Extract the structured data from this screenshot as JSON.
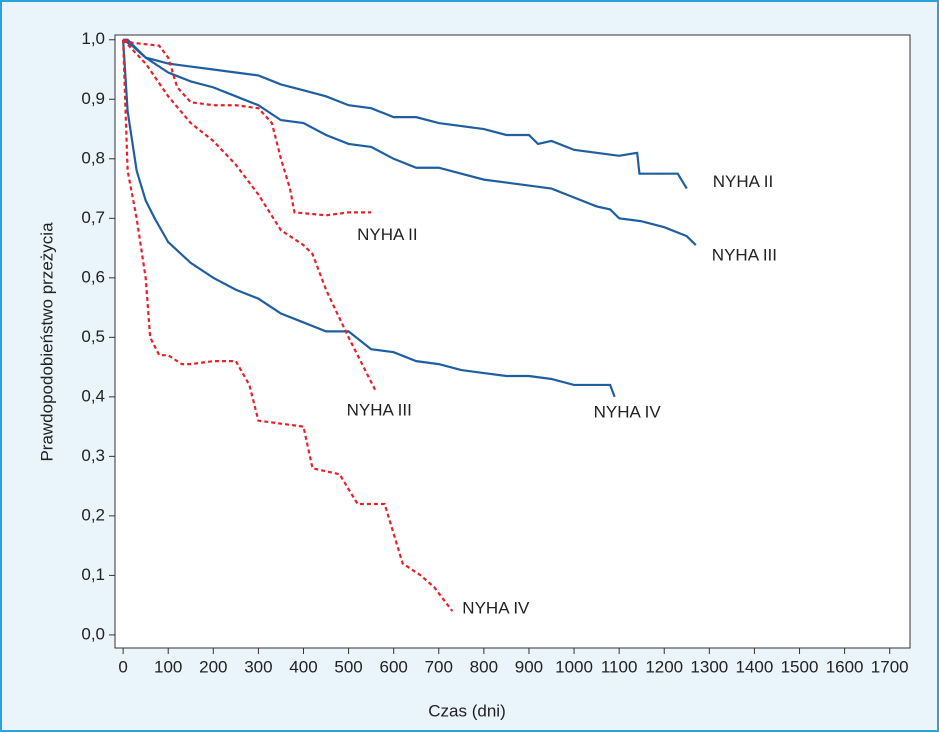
{
  "chart_data": {
    "type": "line",
    "x_label": "Czas (dni)",
    "y_label": "Prawdopodobieństwo przeżycia",
    "xlim": [
      -18,
      1745
    ],
    "ylim": [
      -0.022,
      1.008
    ],
    "xticks": [
      0,
      100,
      200,
      300,
      400,
      500,
      600,
      700,
      800,
      900,
      1000,
      1100,
      1200,
      1300,
      1400,
      1500,
      1600,
      1700
    ],
    "yticks": [
      {
        "value": 0,
        "label": "0,0"
      },
      {
        "value": 0.1,
        "label": "0,1"
      },
      {
        "value": 0.2,
        "label": "0,2"
      },
      {
        "value": 0.3,
        "label": "0,3"
      },
      {
        "value": 0.4,
        "label": "0,4"
      },
      {
        "value": 0.5,
        "label": "0,5"
      },
      {
        "value": 0.6,
        "label": "0,6"
      },
      {
        "value": 0.7,
        "label": "0,7"
      },
      {
        "value": 0.8,
        "label": "0,8"
      },
      {
        "value": 0.9,
        "label": "0,9"
      },
      {
        "value": 1,
        "label": "1,0"
      }
    ],
    "series": [
      {
        "name": "NYHA II",
        "color": "#1f5fa0",
        "dashed": false,
        "x": [
          0,
          10,
          50,
          100,
          150,
          200,
          250,
          300,
          350,
          400,
          450,
          500,
          550,
          600,
          650,
          700,
          800,
          850,
          900,
          920,
          950,
          1000,
          1050,
          1100,
          1140,
          1145,
          1200,
          1230,
          1250
        ],
        "values": [
          1.0,
          1.0,
          0.97,
          0.96,
          0.955,
          0.95,
          0.945,
          0.94,
          0.925,
          0.915,
          0.905,
          0.89,
          0.885,
          0.87,
          0.87,
          0.86,
          0.85,
          0.84,
          0.84,
          0.825,
          0.83,
          0.815,
          0.81,
          0.805,
          0.81,
          0.775,
          0.775,
          0.775,
          0.75
        ]
      },
      {
        "name": "NYHA III",
        "color": "#1f5fa0",
        "dashed": false,
        "x": [
          0,
          20,
          50,
          100,
          150,
          200,
          250,
          300,
          350,
          400,
          450,
          500,
          550,
          600,
          650,
          700,
          750,
          800,
          850,
          900,
          950,
          1000,
          1050,
          1080,
          1100,
          1150,
          1200,
          1250,
          1270
        ],
        "values": [
          1.0,
          0.99,
          0.97,
          0.945,
          0.93,
          0.92,
          0.905,
          0.89,
          0.865,
          0.86,
          0.84,
          0.825,
          0.82,
          0.8,
          0.785,
          0.785,
          0.775,
          0.765,
          0.76,
          0.755,
          0.75,
          0.735,
          0.72,
          0.715,
          0.7,
          0.695,
          0.685,
          0.67,
          0.655
        ]
      },
      {
        "name": "NYHA IV",
        "color": "#1f5fa0",
        "dashed": false,
        "x": [
          0,
          10,
          30,
          50,
          70,
          100,
          150,
          200,
          250,
          300,
          350,
          400,
          450,
          500,
          550,
          600,
          650,
          700,
          750,
          800,
          850,
          900,
          950,
          1000,
          1050,
          1080,
          1090
        ],
        "values": [
          1.0,
          0.88,
          0.78,
          0.73,
          0.7,
          0.66,
          0.625,
          0.6,
          0.58,
          0.565,
          0.54,
          0.525,
          0.51,
          0.51,
          0.48,
          0.475,
          0.46,
          0.455,
          0.445,
          0.44,
          0.435,
          0.435,
          0.43,
          0.42,
          0.42,
          0.42,
          0.4
        ]
      },
      {
        "name": "NYHA II",
        "color": "#e8202a",
        "dashed": true,
        "x": [
          0,
          20,
          80,
          100,
          120,
          150,
          200,
          250,
          300,
          330,
          350,
          370,
          380,
          450,
          500,
          550
        ],
        "values": [
          1.0,
          0.995,
          0.99,
          0.97,
          0.92,
          0.895,
          0.89,
          0.89,
          0.885,
          0.86,
          0.8,
          0.75,
          0.71,
          0.705,
          0.71,
          0.71
        ]
      },
      {
        "name": "NYHA III",
        "color": "#e8202a",
        "dashed": true,
        "x": [
          0,
          50,
          100,
          150,
          200,
          250,
          300,
          350,
          400,
          420,
          450,
          500,
          540,
          560
        ],
        "values": [
          1.0,
          0.96,
          0.905,
          0.86,
          0.83,
          0.79,
          0.74,
          0.68,
          0.655,
          0.64,
          0.58,
          0.5,
          0.44,
          0.41
        ]
      },
      {
        "name": "NYHA IV",
        "color": "#e8202a",
        "dashed": true,
        "x": [
          0,
          10,
          30,
          50,
          60,
          80,
          100,
          130,
          150,
          200,
          250,
          280,
          300,
          400,
          420,
          480,
          520,
          580,
          620,
          660,
          690,
          730
        ],
        "values": [
          1.0,
          0.78,
          0.7,
          0.6,
          0.5,
          0.47,
          0.47,
          0.455,
          0.455,
          0.46,
          0.46,
          0.42,
          0.36,
          0.35,
          0.28,
          0.27,
          0.22,
          0.22,
          0.12,
          0.1,
          0.08,
          0.04
        ]
      }
    ]
  }
}
